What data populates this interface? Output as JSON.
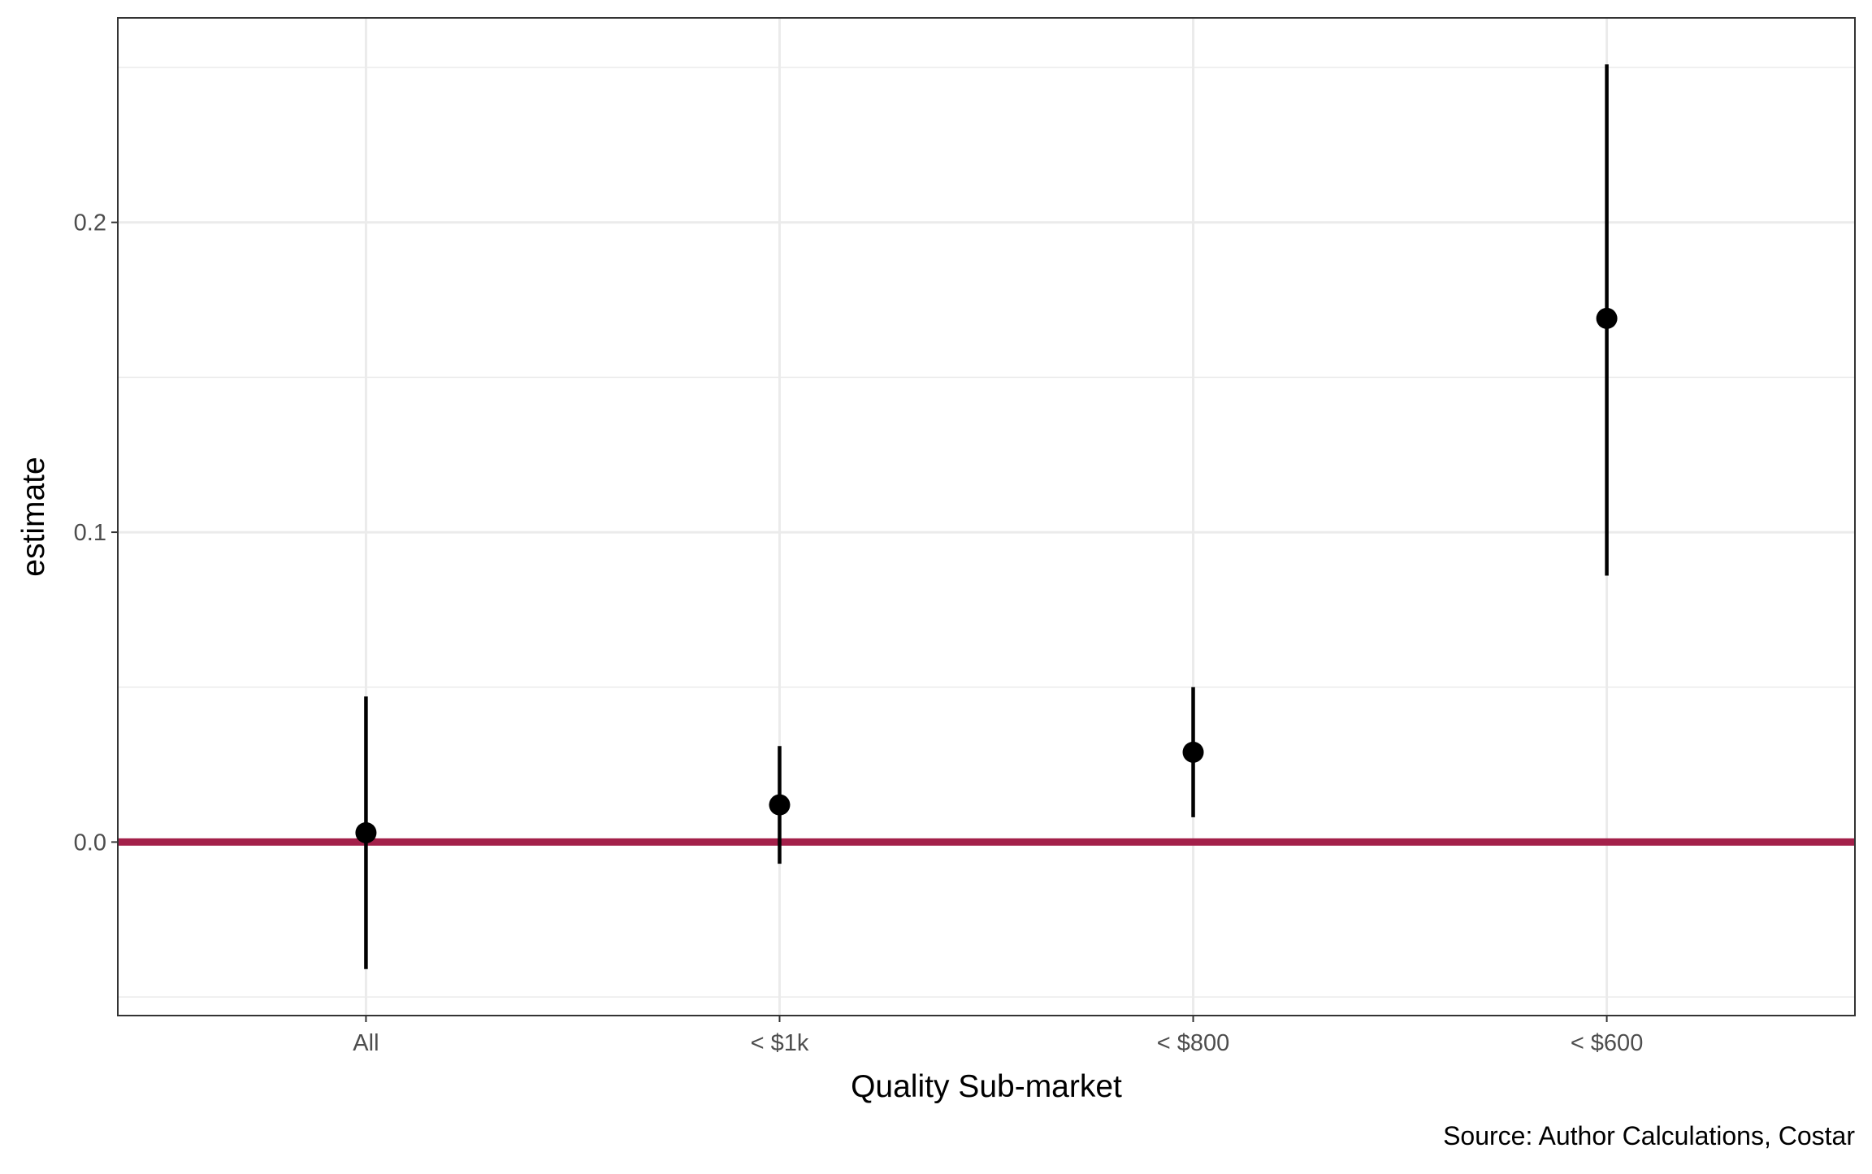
{
  "chart_data": {
    "type": "scatter",
    "title": "",
    "xlabel": "Quality Sub-market",
    "ylabel": "estimate",
    "caption": "Source: Author Calculations, Costar",
    "categories": [
      "All",
      "< $1k",
      "< $800",
      "< $600"
    ],
    "series": [
      {
        "values": [
          0.003,
          0.012,
          0.029,
          0.169
        ],
        "lower": [
          -0.041,
          -0.007,
          0.008,
          0.086
        ],
        "upper": [
          0.047,
          0.031,
          0.05,
          0.251
        ]
      }
    ],
    "ylim": [
      -0.056,
      0.266
    ],
    "yticks": [
      0.0,
      0.1,
      0.2
    ],
    "ytick_labels": [
      "0.0",
      "0.1",
      "0.2"
    ],
    "reference_line": {
      "y": 0.0,
      "color": "#A3204A"
    },
    "grid": true,
    "legend": "none",
    "colors": {
      "points": "#000000",
      "errorbars": "#000000",
      "grid": "#EBEBEB",
      "panel_border": "#333333",
      "tick_text": "#4D4D4D"
    }
  }
}
